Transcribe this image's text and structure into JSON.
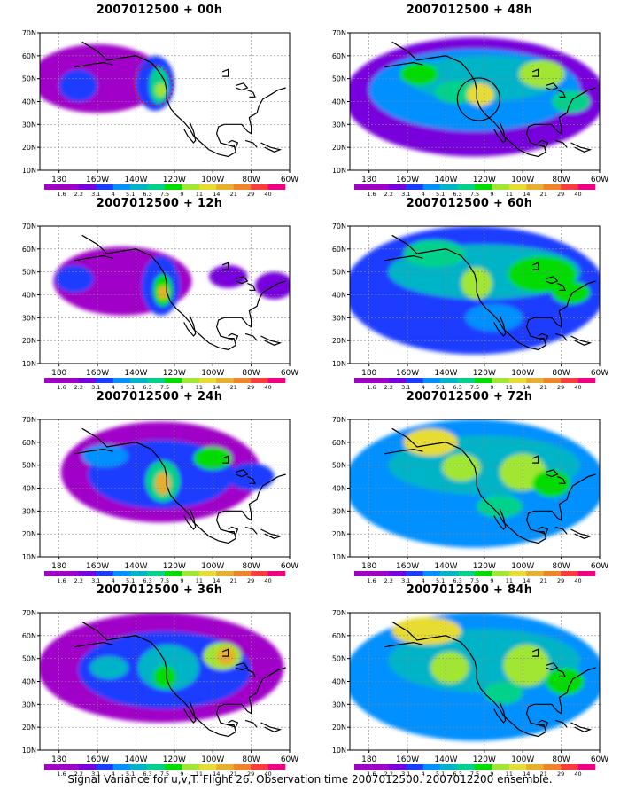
{
  "caption": "Signal Variance for u,v,T. Flight 26. Observation time 2007012500. 2007012200 ensemble.",
  "panels": [
    {
      "title": "2007012500 + 00h"
    },
    {
      "title": "2007012500 + 48h"
    },
    {
      "title": "2007012500 + 12h"
    },
    {
      "title": "2007012500 + 60h"
    },
    {
      "title": "2007012500 + 24h"
    },
    {
      "title": "2007012500 + 72h"
    },
    {
      "title": "2007012500 + 36h"
    },
    {
      "title": "2007012500 + 84h"
    }
  ],
  "axes": {
    "lat_labels": [
      "70N",
      "60N",
      "50N",
      "40N",
      "30N",
      "20N",
      "10N"
    ],
    "lon_labels": [
      "180",
      "160W",
      "140W",
      "120W",
      "100W",
      "80W",
      "60W"
    ]
  },
  "colorbar": {
    "levels": [
      "1.6",
      "2.2",
      "3.1",
      "4",
      "5.1",
      "6.3",
      "7.5",
      "9",
      "11",
      "14",
      "21",
      "29",
      "40"
    ],
    "colors": [
      "#a000c8",
      "#7800dc",
      "#1e3cff",
      "#0090ff",
      "#00b4c8",
      "#00d28c",
      "#00dc00",
      "#a0e632",
      "#e6dc32",
      "#e6af2d",
      "#f08228",
      "#fa3c3c",
      "#f00082"
    ]
  },
  "colors": {
    "coast": "#000000",
    "grid": "#888888",
    "region_marker": "#ff0000"
  }
}
